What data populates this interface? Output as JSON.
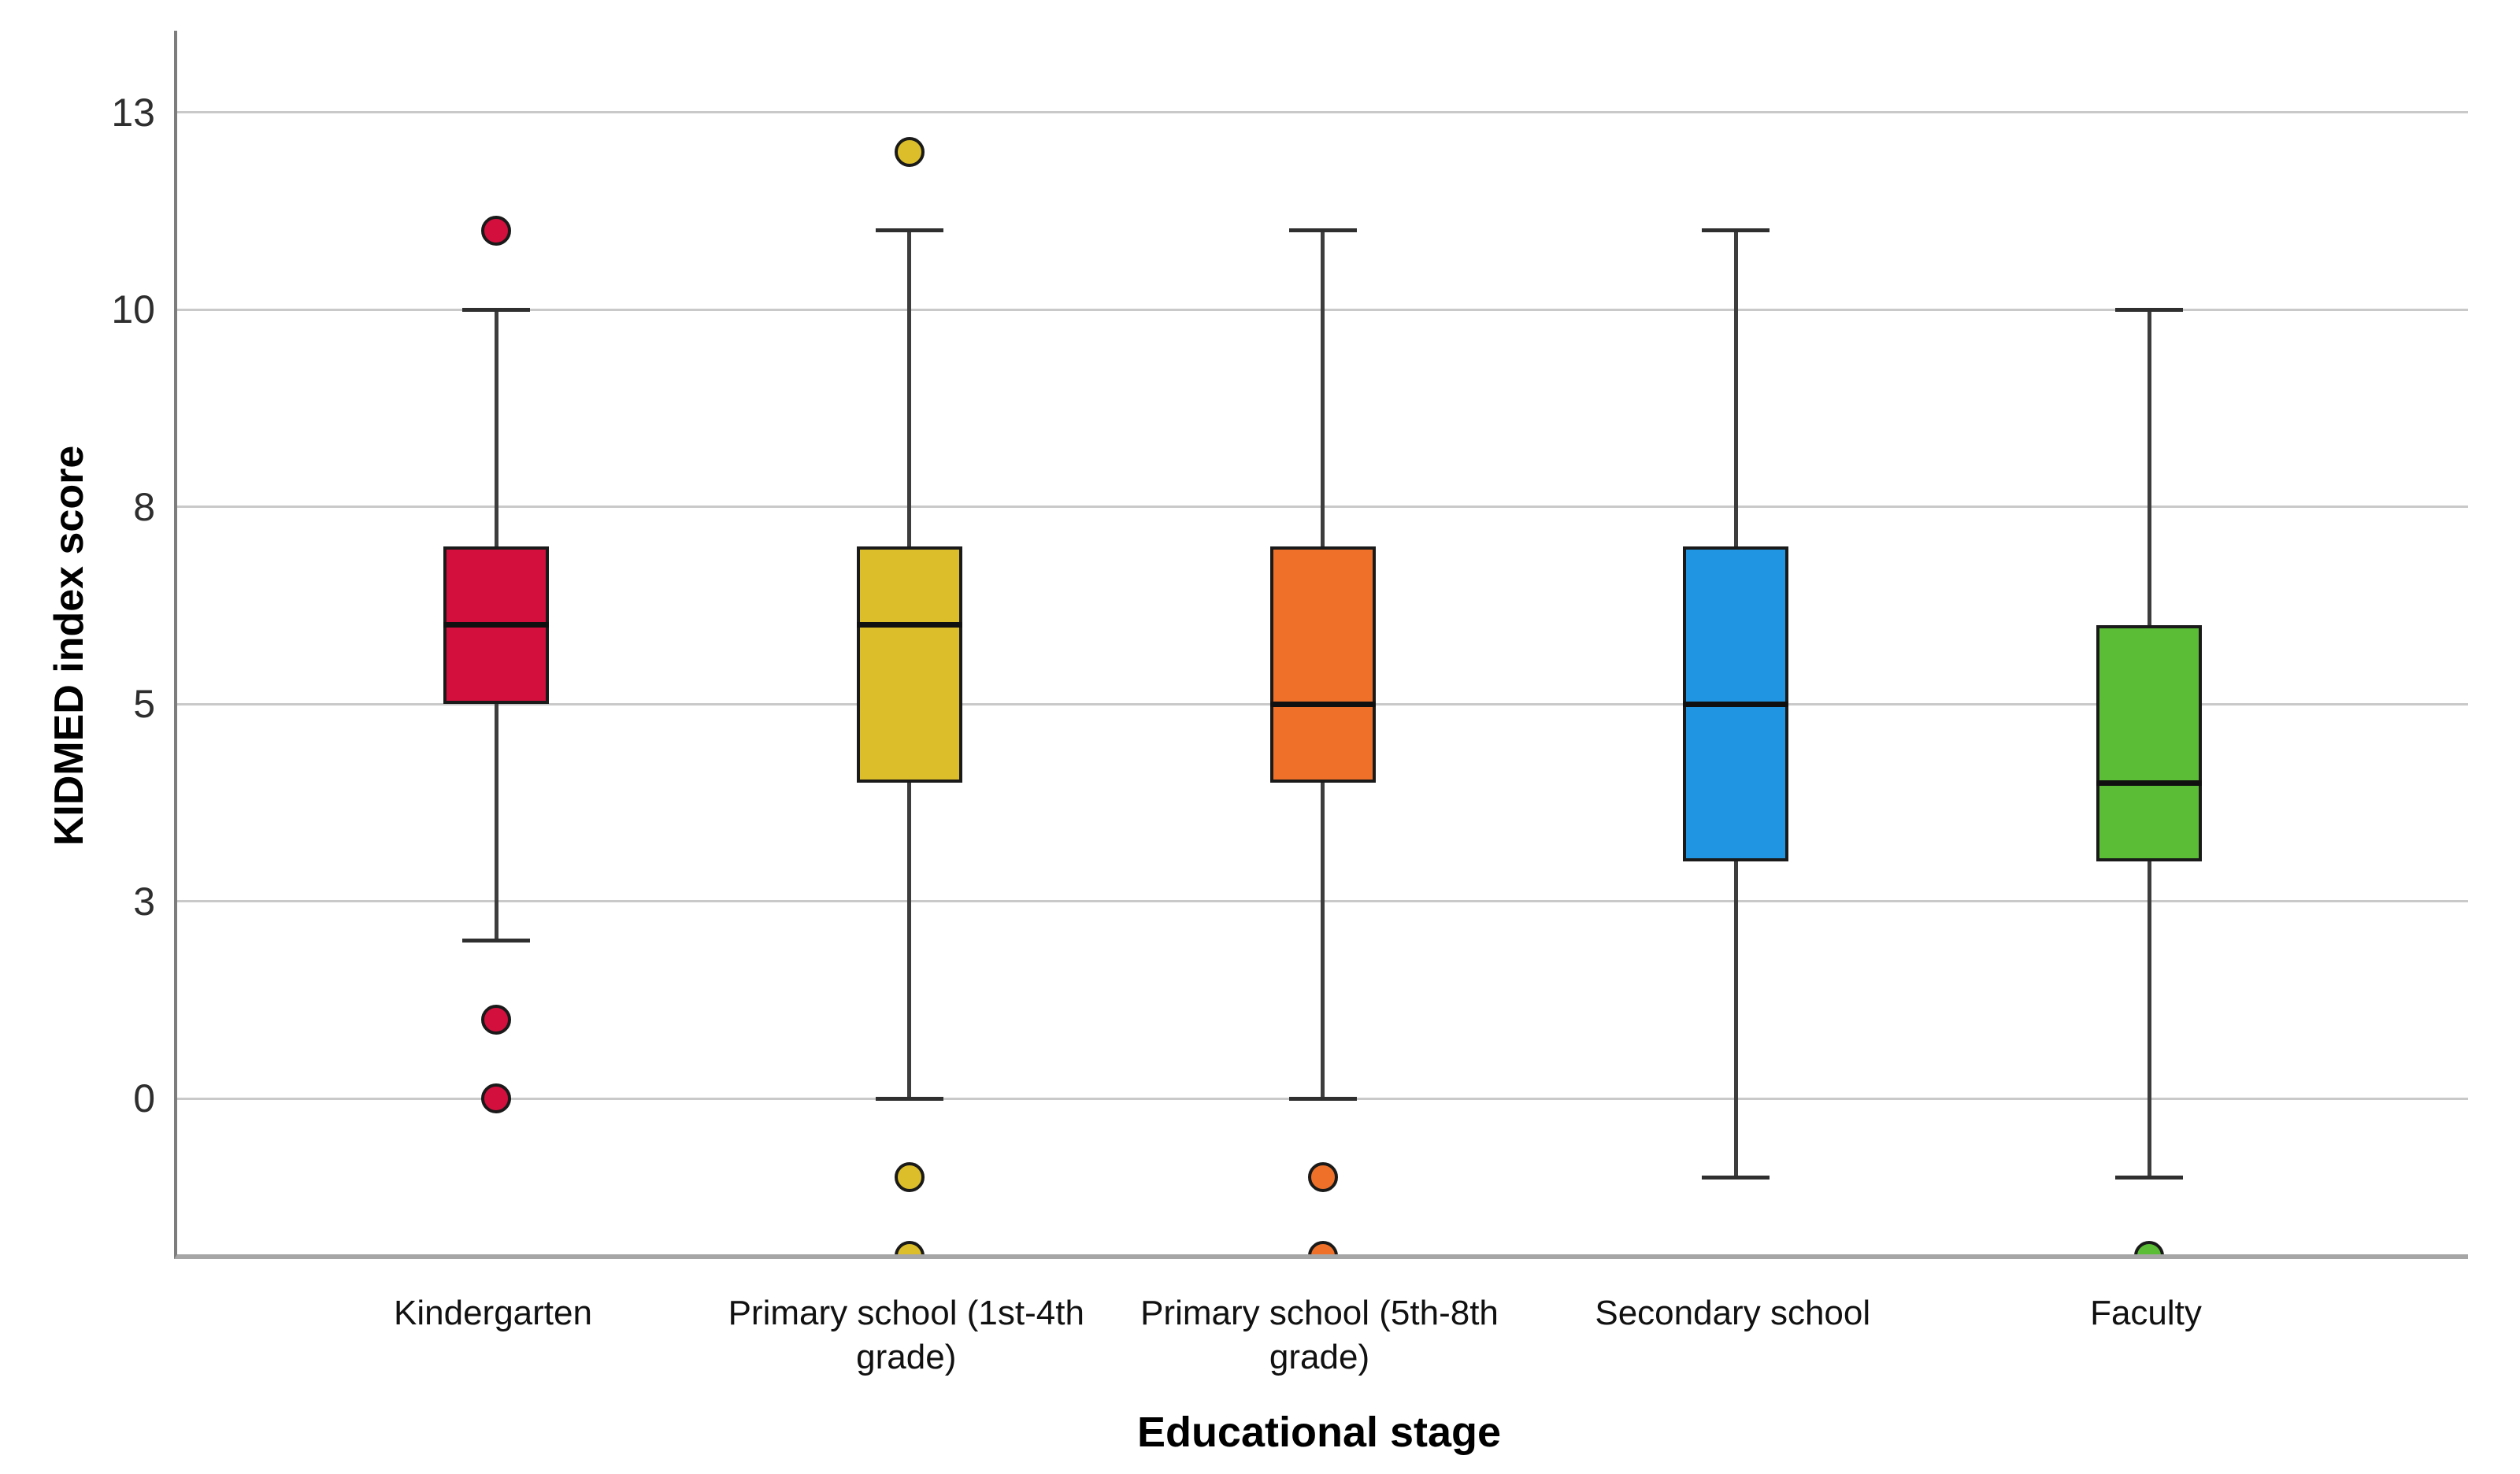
{
  "figure": {
    "y_axis_title": "KIDMED index score",
    "x_axis_title": "Educational stage"
  },
  "chart_data": {
    "type": "boxplot",
    "title": "",
    "xlabel": "Educational stage",
    "ylabel": "KIDMED index score",
    "ylim": [
      -2,
      13.5
    ],
    "grid": "horizontal-light-gray",
    "legend": "none",
    "ytick_values": [
      0,
      2.5,
      5,
      7.5,
      10,
      12.5
    ],
    "ytick_labels": [
      "0",
      "3",
      "5",
      "8",
      "10",
      "13"
    ],
    "categories": [
      "Kindergarten",
      "Primary school (1st-4th\ngrade)",
      "Primary school (5th-8th\ngrade)",
      "Secondary school",
      "Faculty"
    ],
    "series": [
      {
        "name": "Kindergarten",
        "color": "#D30F3D",
        "whisker_low": 2,
        "q1": 5,
        "median": 6,
        "q3": 7,
        "whisker_high": 10,
        "outliers": [
          11,
          1,
          0
        ]
      },
      {
        "name": "Primary school (1st-4th grade)",
        "color": "#DCBE2A",
        "whisker_low": 0,
        "q1": 4,
        "median": 6,
        "q3": 7,
        "whisker_high": 11,
        "outliers": [
          12,
          -1,
          -2
        ]
      },
      {
        "name": "Primary school (5th-8th grade)",
        "color": "#EF7129",
        "whisker_low": 0,
        "q1": 4,
        "median": 5,
        "q3": 7,
        "whisker_high": 11,
        "outliers": [
          -1,
          -2
        ]
      },
      {
        "name": "Secondary school",
        "color": "#2095E2",
        "whisker_low": -1,
        "q1": 3,
        "median": 5,
        "q3": 7,
        "whisker_high": 11,
        "outliers": []
      },
      {
        "name": "Faculty",
        "color": "#5ABD35",
        "whisker_low": -1,
        "q1": 3,
        "median": 4,
        "q3": 6,
        "whisker_high": 10,
        "outliers": [
          -2
        ]
      }
    ]
  }
}
